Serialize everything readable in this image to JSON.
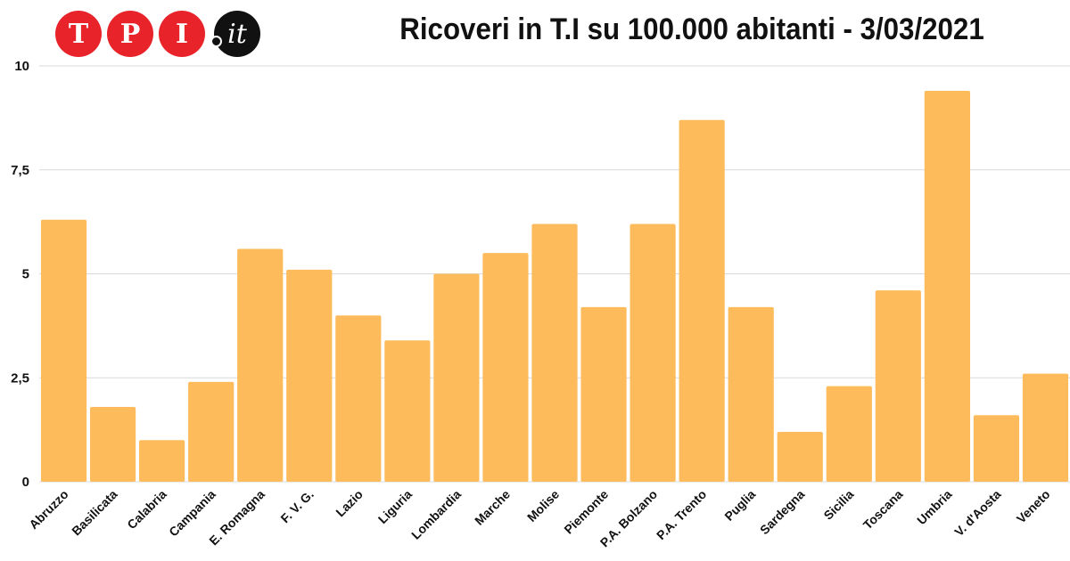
{
  "logo": {
    "letters": [
      "T",
      "P",
      "I"
    ],
    "suffix": "it"
  },
  "colors": {
    "bar": "#fdbb5b",
    "grid": "#d9d9d9",
    "logo_red": "#e8232a"
  },
  "chart_data": {
    "type": "bar",
    "title": "Ricoveri in T.I su 100.000 abitanti - 3/03/2021",
    "xlabel": "",
    "ylabel": "",
    "ylim": [
      0,
      10
    ],
    "yticks": [
      0,
      2.5,
      5,
      7.5,
      10
    ],
    "ytick_labels": [
      "0",
      "2,5",
      "5",
      "7,5",
      "10"
    ],
    "grid": true,
    "categories": [
      "Abruzzo",
      "Basilicata",
      "Calabria",
      "Campania",
      "E. Romagna",
      "F. V. G.",
      "Lazio",
      "Liguria",
      "Lombardia",
      "Marche",
      "Molise",
      "Piemonte",
      "P.A. Bolzano",
      "P.A. Trento",
      "Puglia",
      "Sardegna",
      "Sicilia",
      "Toscana",
      "Umbria",
      "V. d'Aosta",
      "Veneto"
    ],
    "values": [
      6.3,
      1.8,
      1.0,
      2.4,
      5.6,
      5.1,
      4.0,
      3.4,
      5.0,
      5.5,
      6.2,
      4.2,
      6.2,
      8.7,
      4.2,
      1.2,
      2.3,
      4.6,
      9.4,
      1.6,
      2.6
    ]
  }
}
